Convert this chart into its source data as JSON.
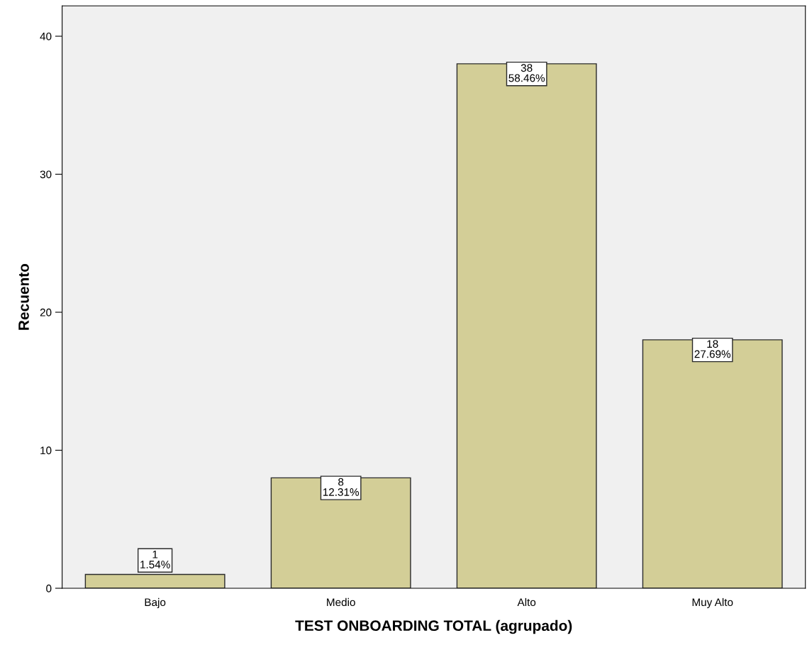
{
  "chart_data": {
    "type": "bar",
    "xlabel": "TEST ONBOARDING TOTAL (agrupado)",
    "ylabel": "Recuento",
    "categories": [
      "Bajo",
      "Medio",
      "Alto",
      "Muy Alto"
    ],
    "values": [
      1,
      8,
      38,
      18
    ],
    "value_labels": [
      "1\n1.54%",
      "8\n12.31%",
      "38\n58.46%",
      "18\n27.69%"
    ],
    "color": "#d3ce97",
    "ylim": [
      0,
      42.2
    ],
    "yticks": [
      0,
      10,
      20,
      30,
      40
    ],
    "grid": false,
    "legend": false
  }
}
